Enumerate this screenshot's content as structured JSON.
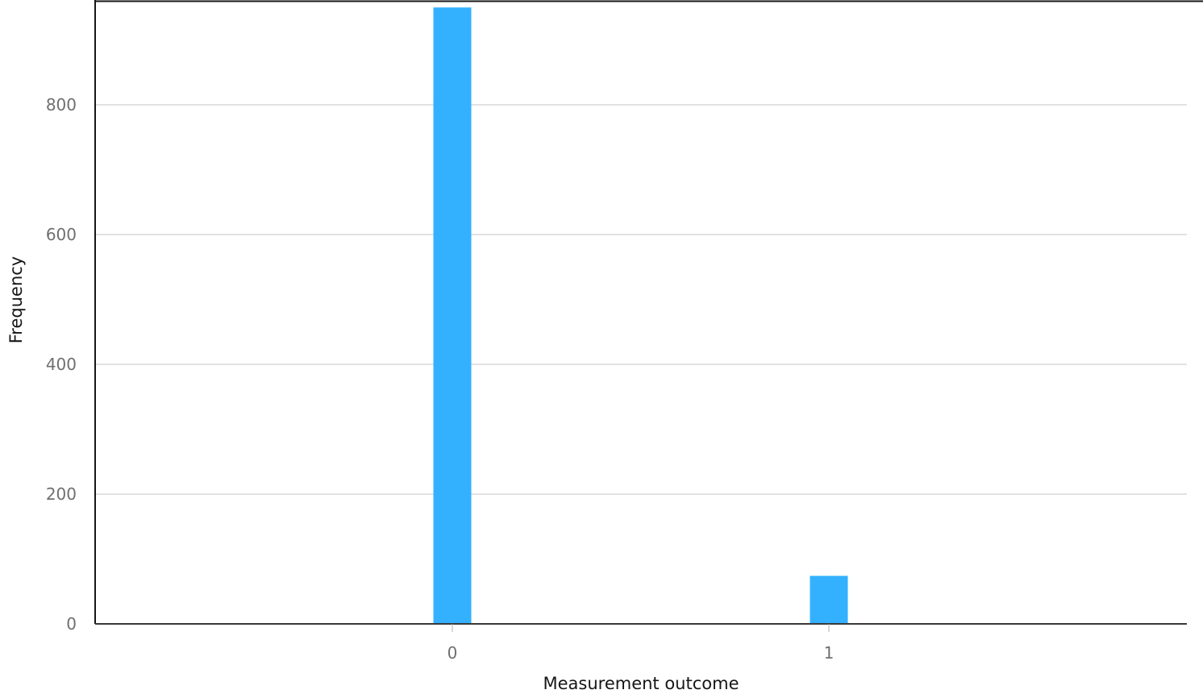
{
  "chart_data": {
    "type": "bar",
    "categories": [
      "0",
      "1"
    ],
    "values": [
      950,
      74
    ],
    "xlabel": "Measurement outcome",
    "ylabel": "Frequency",
    "ylim": [
      0,
      955
    ],
    "yticks": [
      0,
      200,
      400,
      600,
      800
    ],
    "grid": true,
    "bar_color": "#33b1ff",
    "grid_color": "#d9d9d9",
    "axis_color": "#393939"
  }
}
